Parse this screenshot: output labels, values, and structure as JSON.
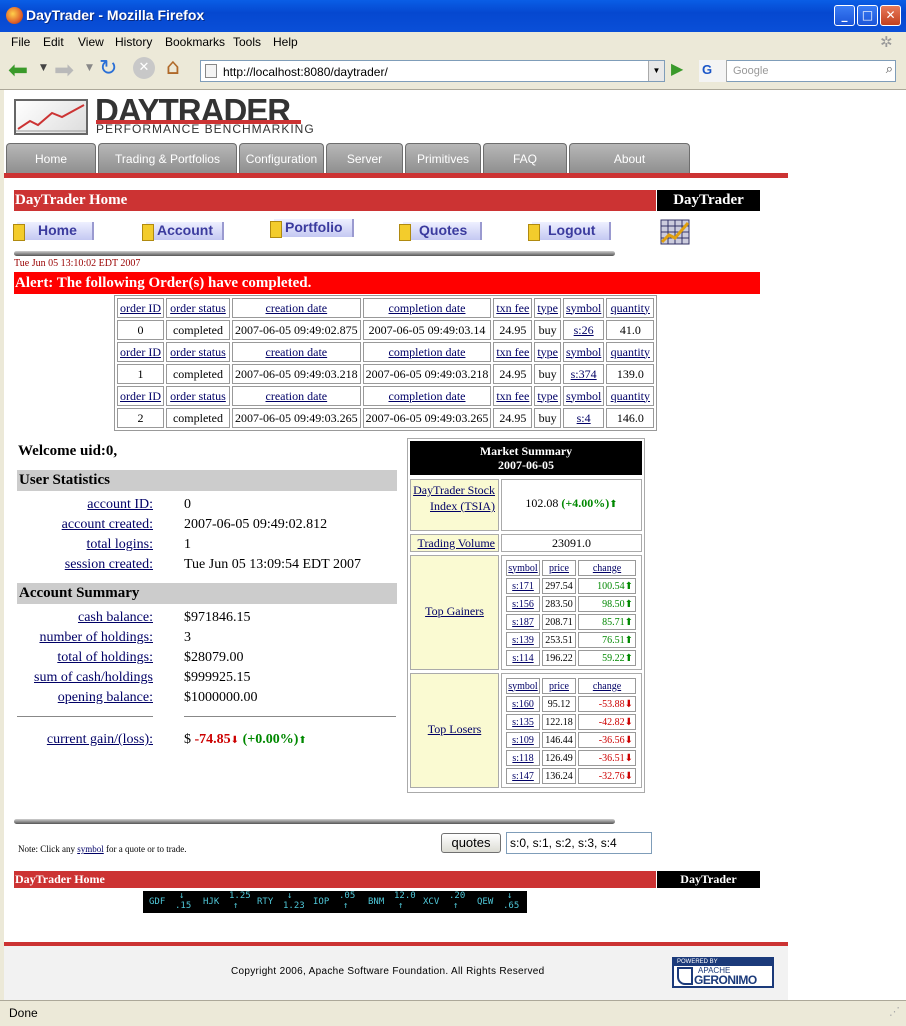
{
  "window": {
    "title": "DayTrader - Mozilla Firefox"
  },
  "menu": [
    "File",
    "Edit",
    "View",
    "History",
    "Bookmarks",
    "Tools",
    "Help"
  ],
  "browser": {
    "url": "http://localhost:8080/daytrader/",
    "search_engine": "G",
    "search_placeholder": "Google",
    "status": "Done"
  },
  "logo": {
    "title": "DAYTRADER",
    "subtitle": "PERFORMANCE BENCHMARKING"
  },
  "tabs": [
    "Home",
    "Trading & Portfolios",
    "Configuration",
    "Server",
    "Primitives",
    "FAQ",
    "About"
  ],
  "header": {
    "title": "DayTrader Home",
    "brand": "DayTrader"
  },
  "nav": [
    "Home",
    "Account",
    "Portfolio",
    "Quotes",
    "Logout"
  ],
  "timestamp": "Tue Jun 05 13:10:02 EDT 2007",
  "alert": "Alert: The following Order(s) have completed.",
  "orders": {
    "headers": [
      "order ID",
      "order status",
      "creation date",
      "completion date",
      "txn fee",
      "type",
      "symbol",
      "quantity"
    ],
    "rows": [
      [
        "0",
        "completed",
        "2007-06-05 09:49:02.875",
        "2007-06-05 09:49:03.14",
        "24.95",
        "buy",
        "s:26",
        "41.0"
      ],
      [
        "1",
        "completed",
        "2007-06-05 09:49:03.218",
        "2007-06-05 09:49:03.218",
        "24.95",
        "buy",
        "s:374",
        "139.0"
      ],
      [
        "2",
        "completed",
        "2007-06-05 09:49:03.265",
        "2007-06-05 09:49:03.265",
        "24.95",
        "buy",
        "s:4",
        "146.0"
      ]
    ]
  },
  "welcome": "Welcome  uid:0,",
  "user_stats": {
    "title": "User Statistics",
    "items": [
      {
        "label": "account ID:",
        "value": "0"
      },
      {
        "label": "account created:",
        "value": "2007-06-05 09:49:02.812"
      },
      {
        "label": "total logins:",
        "value": "1"
      },
      {
        "label": "session created:",
        "value": "Tue Jun 05 13:09:54 EDT 2007"
      }
    ]
  },
  "account_summary": {
    "title": "Account Summary",
    "items": [
      {
        "label": "cash balance:",
        "value": "$971846.15"
      },
      {
        "label": "number of holdings:",
        "value": "3"
      },
      {
        "label": "total of holdings:",
        "value": "$28079.00"
      },
      {
        "label": "sum of cash/holdings",
        "value": "$999925.15"
      },
      {
        "label": "opening balance:",
        "value": "$1000000.00"
      }
    ],
    "gain_label": "current gain/(loss):",
    "gain_prefix": "$",
    "gain_value": "-74.85",
    "gain_pct": "(+0.00%)"
  },
  "market": {
    "title": "Market Summary",
    "date": "2007-06-05",
    "tsia_label": "DayTrader Stock Index (TSIA)",
    "tsia_value": "102.08",
    "tsia_change": "(+4.00%)",
    "volume_label": "Trading Volume",
    "volume_value": "23091.0",
    "gainers_label": "Top Gainers",
    "losers_label": "Top Losers",
    "cols": [
      "symbol",
      "price",
      "change"
    ],
    "gainers": [
      [
        "s:171",
        "297.54",
        "100.54"
      ],
      [
        "s:156",
        "283.50",
        "98.50"
      ],
      [
        "s:187",
        "208.71",
        "85.71"
      ],
      [
        "s:139",
        "253.51",
        "76.51"
      ],
      [
        "s:114",
        "196.22",
        "59.22"
      ]
    ],
    "losers": [
      [
        "s:160",
        "95.12",
        "-53.88"
      ],
      [
        "s:135",
        "122.18",
        "-42.82"
      ],
      [
        "s:109",
        "146.44",
        "-36.56"
      ],
      [
        "s:118",
        "126.49",
        "-36.51"
      ],
      [
        "s:147",
        "136.24",
        "-32.76"
      ]
    ]
  },
  "quotes": {
    "note_pre": "Note: Click any ",
    "note_link": "symbol",
    "note_post": " for a quote or to trade.",
    "button": "quotes",
    "input_value": "s:0, s:1, s:2, s:3, s:4"
  },
  "footer": {
    "title": "DayTrader Home",
    "brand": "DayTrader",
    "copyright": "Copyright 2006, Apache Software Foundation. All Rights Reserved",
    "powered": "POWERED BY",
    "apache": "APACHE",
    "geronimo": "GERONIMO"
  },
  "ticker": [
    {
      "sym": "GDF",
      "chg": ".15",
      "dir": "↓"
    },
    {
      "sym": "HJK",
      "chg": "1.25",
      "dir": "↑"
    },
    {
      "sym": "RTY",
      "chg": "1.23",
      "dir": "↓"
    },
    {
      "sym": "IOP",
      "chg": ".05",
      "dir": "↑"
    },
    {
      "sym": "BNM",
      "chg": "12.0",
      "dir": "↑"
    },
    {
      "sym": "XCV",
      "chg": ".20",
      "dir": "↑"
    },
    {
      "sym": "QEW",
      "chg": ".65",
      "dir": "↓"
    }
  ]
}
